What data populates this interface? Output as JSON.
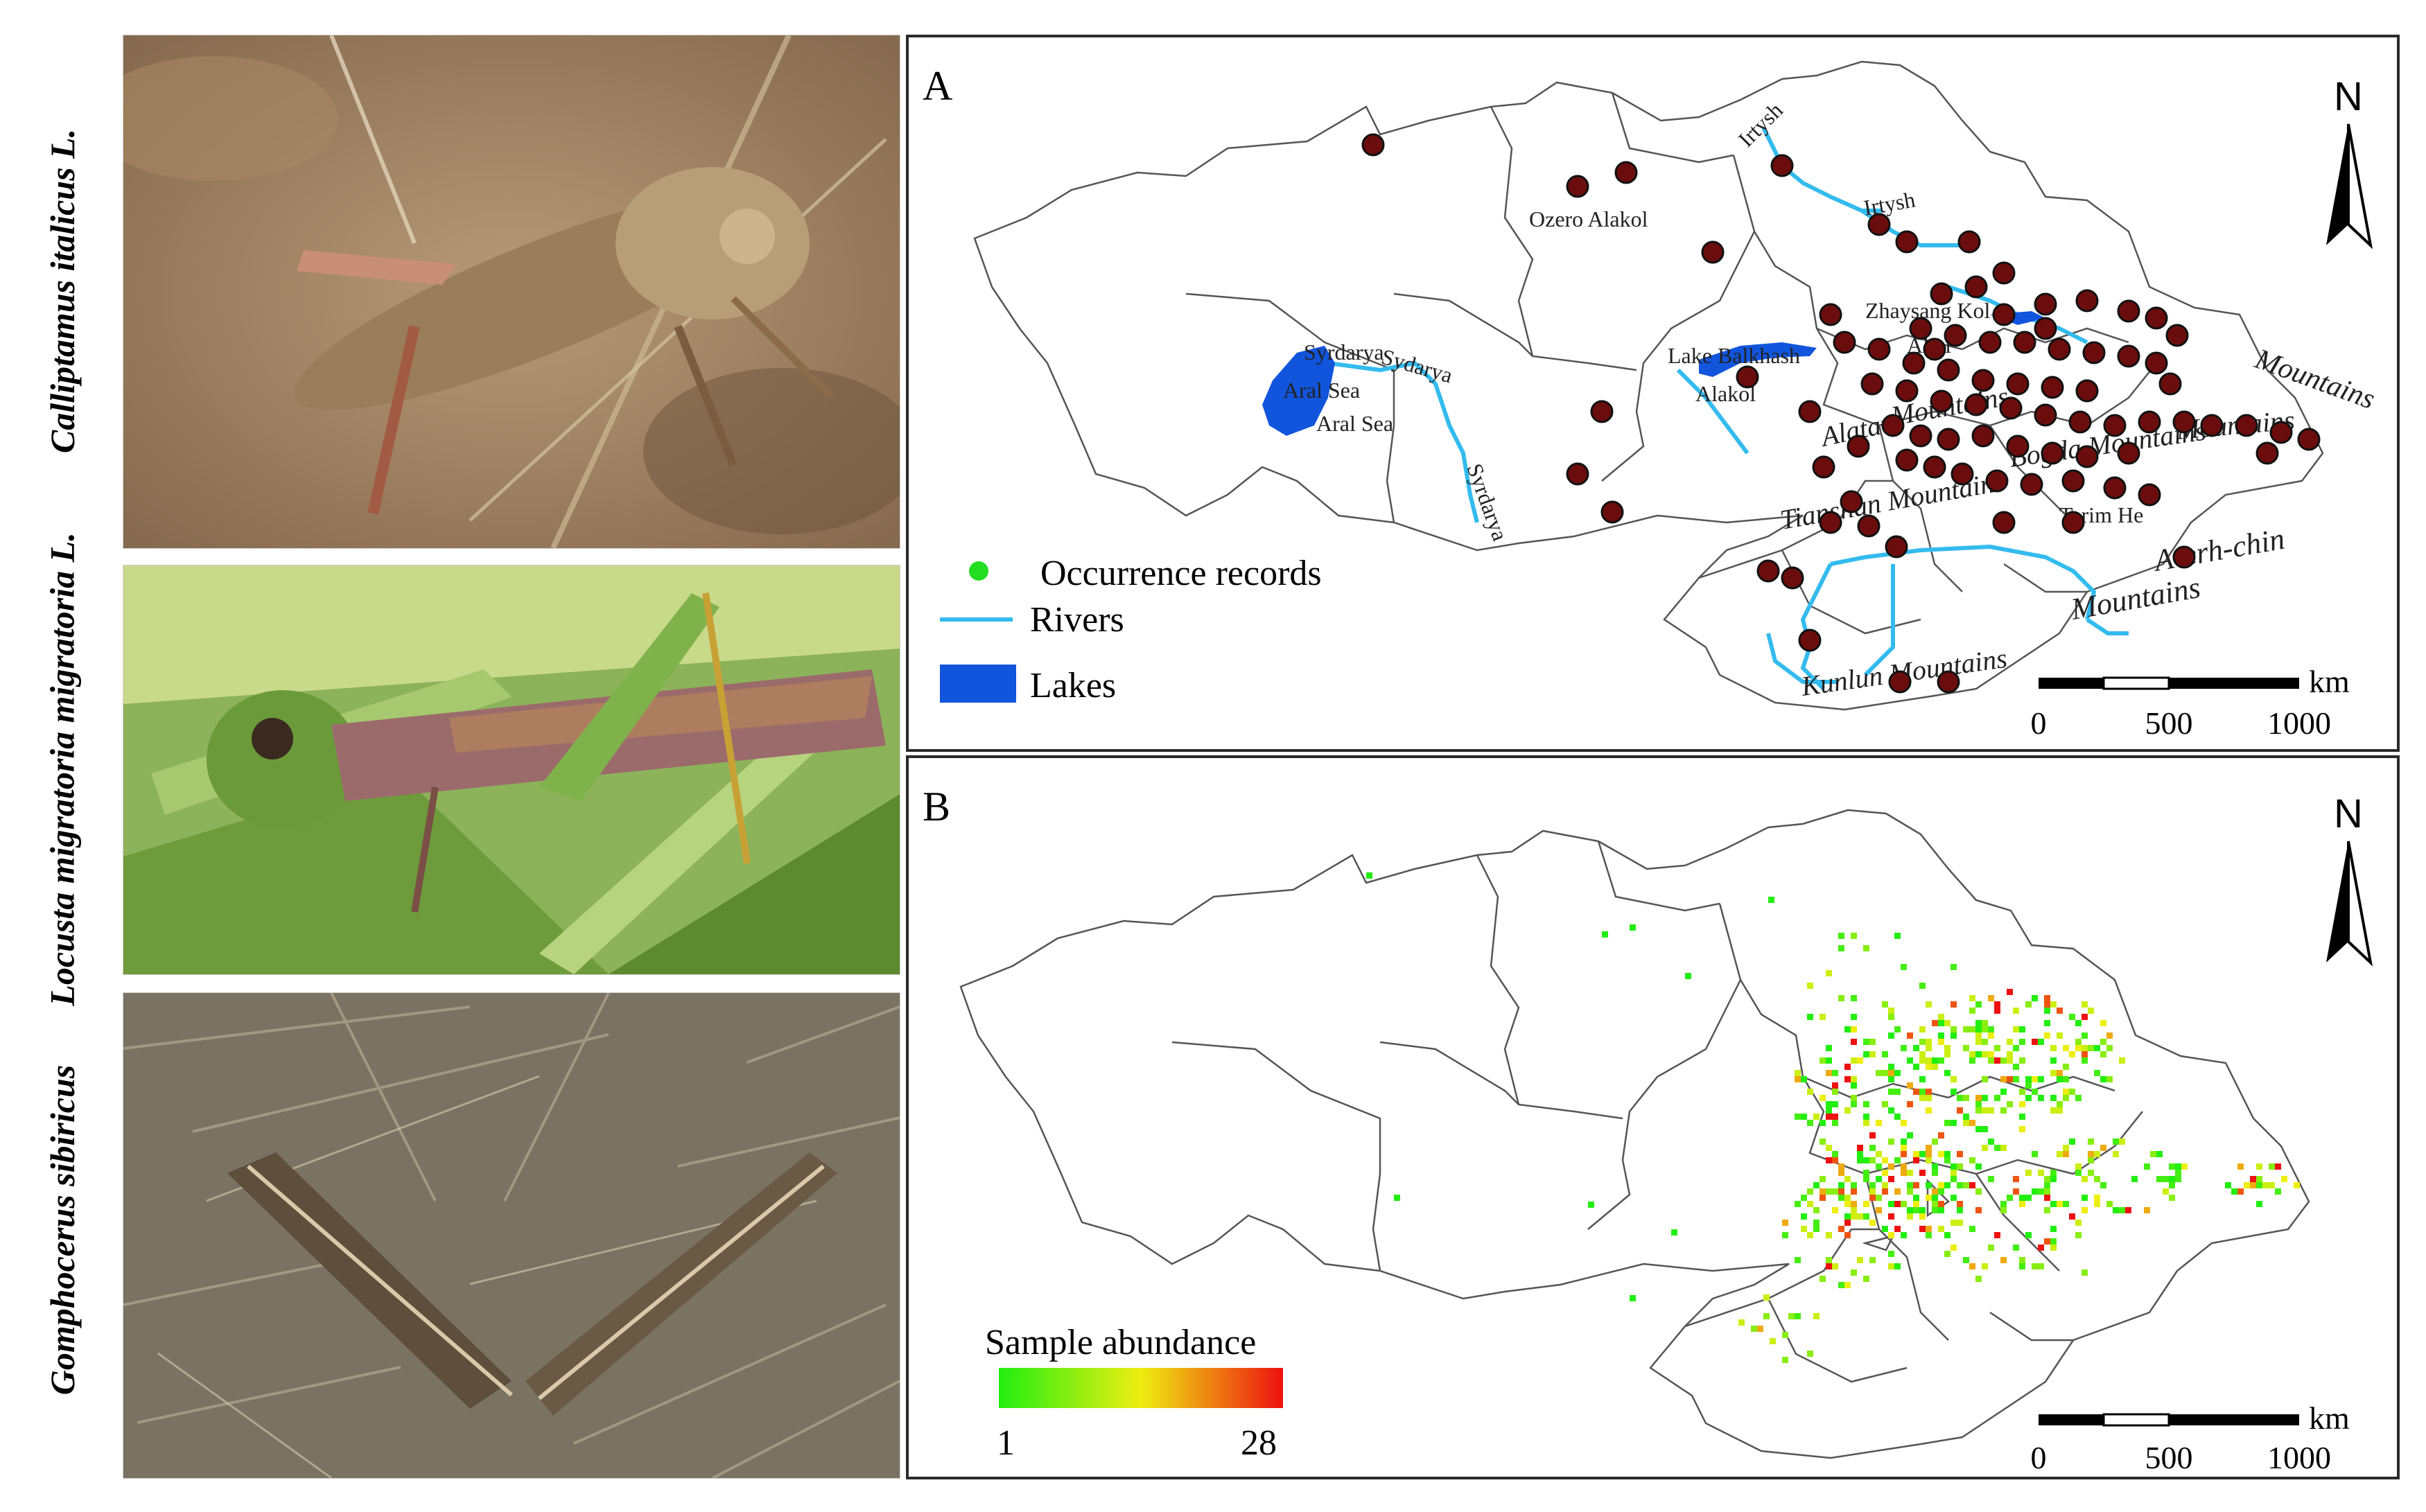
{
  "photos": [
    {
      "species": "Calliptamus italicus L."
    },
    {
      "species": "Locusta migratoria migratoria L."
    },
    {
      "species": "Gomphocerus sibiricus"
    }
  ],
  "panel_a": {
    "letter": "A",
    "north": "N",
    "legend": {
      "occurrence": "Occurrence records",
      "rivers": "Rivers",
      "lakes": "Lakes"
    },
    "scale": {
      "unit": "km",
      "ticks": [
        "0",
        "500",
        "1000"
      ]
    },
    "colors": {
      "occurrence_dot": "#6b0d0d",
      "legend_dot": "#22dd22",
      "river": "#33bbee",
      "lake": "#1155dd"
    },
    "labels": [
      "Irtysh",
      "Irtysh",
      "Ozero Alakol",
      "Zhaysang Kol",
      "Lake Balkhash",
      "Alakol",
      "Syrdarya",
      "Sydarya",
      "Aral Sea",
      "Aral Sea",
      "Syrdarya",
      "Alatau",
      "Mountains",
      "Tianshan Mountains",
      "Bogda Mountains",
      "Mountains",
      "Tarim He",
      "A-erh-chin",
      "Mountains",
      "Kunlun Mountains",
      "Altai",
      "Mountains"
    ]
  },
  "panel_b": {
    "letter": "B",
    "north": "N",
    "legend": {
      "title": "Sample abundance",
      "min": "1",
      "max": "28"
    },
    "colors": {
      "low": "#22ee11",
      "mid": "#eeee11",
      "high": "#ee1111"
    },
    "scale": {
      "unit": "km",
      "ticks": [
        "0",
        "500",
        "1000"
      ]
    }
  }
}
